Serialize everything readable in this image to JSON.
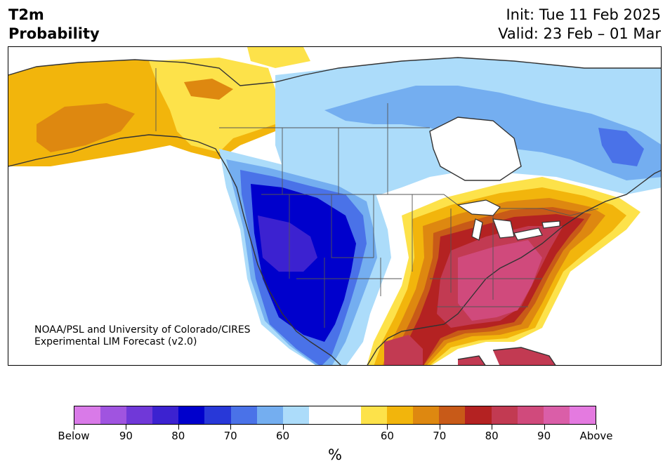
{
  "header": {
    "title_line1": "T2m",
    "title_line2": "Probability",
    "init_line": "Init: Tue 11 Feb 2025",
    "valid_line": "Valid: 23 Feb – 01 Mar"
  },
  "credit": {
    "line1": "NOAA/PSL and University of Colorado/CIRES",
    "line2": "Experimental LIM Forecast (v2.0)"
  },
  "colorbar": {
    "colors": [
      "#d97ae8",
      "#a054e0",
      "#7038d8",
      "#3c22d0",
      "#0000cc",
      "#2838d8",
      "#4a72e8",
      "#74aef0",
      "#acdcfa",
      "#ffffff",
      "#ffffff",
      "#fde24a",
      "#f2b50c",
      "#de8810",
      "#c85a18",
      "#b42222",
      "#c23a52",
      "#d04a7c",
      "#da5ea8",
      "#e47ae0"
    ],
    "labels": [
      "Below",
      "90",
      "80",
      "70",
      "60",
      "60",
      "70",
      "80",
      "90",
      "Above"
    ],
    "unit": "%"
  },
  "palette": {
    "below_90": "#3c22d0",
    "below_80": "#0000cc",
    "below_70": "#4a72e8",
    "below_60": "#74aef0",
    "below_50": "#acdcfa",
    "above_50": "#fde24a",
    "above_60": "#f2b50c",
    "above_70": "#de8810",
    "above_75": "#c85a18",
    "above_80": "#b42222",
    "above_85": "#c23a52",
    "above_90": "#d04a7c"
  }
}
